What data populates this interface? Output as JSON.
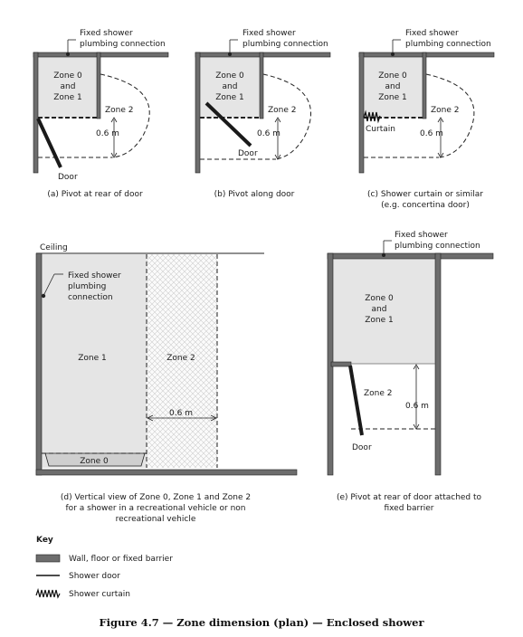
{
  "panels": {
    "a": {
      "callout": [
        "Fixed shower",
        "plumbing connection"
      ],
      "zone01": [
        "Zone 0",
        "and",
        "Zone 1"
      ],
      "zone2": "Zone 2",
      "dim": "0.6 m",
      "door": "Door",
      "caption": "(a) Pivot at rear of door"
    },
    "b": {
      "callout": [
        "Fixed shower",
        "plumbing connection"
      ],
      "zone01": [
        "Zone 0",
        "and",
        "Zone 1"
      ],
      "zone2": "Zone 2",
      "dim": "0.6 m",
      "door": "Door",
      "caption": "(b) Pivot along door"
    },
    "c": {
      "callout": [
        "Fixed shower",
        "plumbing connection"
      ],
      "zone01": [
        "Zone 0",
        "and",
        "Zone 1"
      ],
      "zone2": "Zone 2",
      "dim": "0.6 m",
      "curtain": "Curtain",
      "caption": [
        "(c) Shower curtain or similar",
        "(e.g. concertina door)"
      ]
    },
    "d": {
      "ceiling": "Ceiling",
      "callout": [
        "Fixed shower",
        "plumbing",
        "connection"
      ],
      "zone1": "Zone 1",
      "zone2": "Zone 2",
      "zone0": "Zone 0",
      "dim": "0.6 m",
      "caption": [
        "(d) Vertical view of Zone 0, Zone 1 and Zone 2",
        "for a shower in a recreational vehicle or non",
        "recreational vehicle"
      ]
    },
    "e": {
      "callout": [
        "Fixed shower",
        "plumbing connection"
      ],
      "zone01": [
        "Zone 0",
        "and",
        "Zone 1"
      ],
      "zone2": "Zone 2",
      "dim": "0.6 m",
      "door": "Door",
      "caption": [
        "(e) Pivot at rear of door attached to",
        "fixed barrier"
      ]
    }
  },
  "key": {
    "title": "Key",
    "items": [
      "Wall, floor or fixed barrier",
      "Shower door",
      "Shower curtain"
    ]
  },
  "figure_caption": "Figure 4.7 — Zone dimension (plan) — Enclosed shower",
  "colors": {
    "wall": "#6d6d6d",
    "zone": "#e5e5e5",
    "line": "#222222"
  }
}
